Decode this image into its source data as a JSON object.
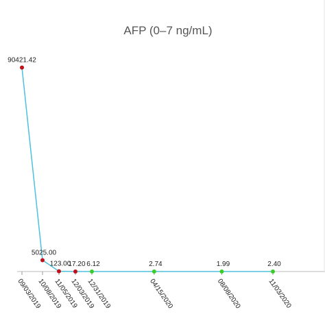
{
  "chart_data": {
    "type": "line",
    "title": "AFP (0–7 ng/mL)",
    "x": [
      "09/03/2019",
      "10/08/2019",
      "11/05/2019",
      "12/03/2019",
      "12/31/2019",
      "04/15/2020",
      "08/08/2020",
      "11/03/2020"
    ],
    "values": [
      90421.42,
      5025.0,
      123.0,
      17.2,
      6.12,
      2.74,
      1.99,
      2.4
    ],
    "value_labels": [
      "90421.42",
      "5025.00",
      "123.00",
      "17.20",
      "6.12",
      "2.74",
      "1.99",
      "2.40"
    ],
    "point_colors": [
      "#c0121a",
      "#c0121a",
      "#c0121a",
      "#c0121a",
      "#3ccc2a",
      "#3ccc2a",
      "#3ccc2a",
      "#3ccc2a"
    ],
    "color": "#4cc0de",
    "ylim": [
      0,
      100000
    ]
  }
}
